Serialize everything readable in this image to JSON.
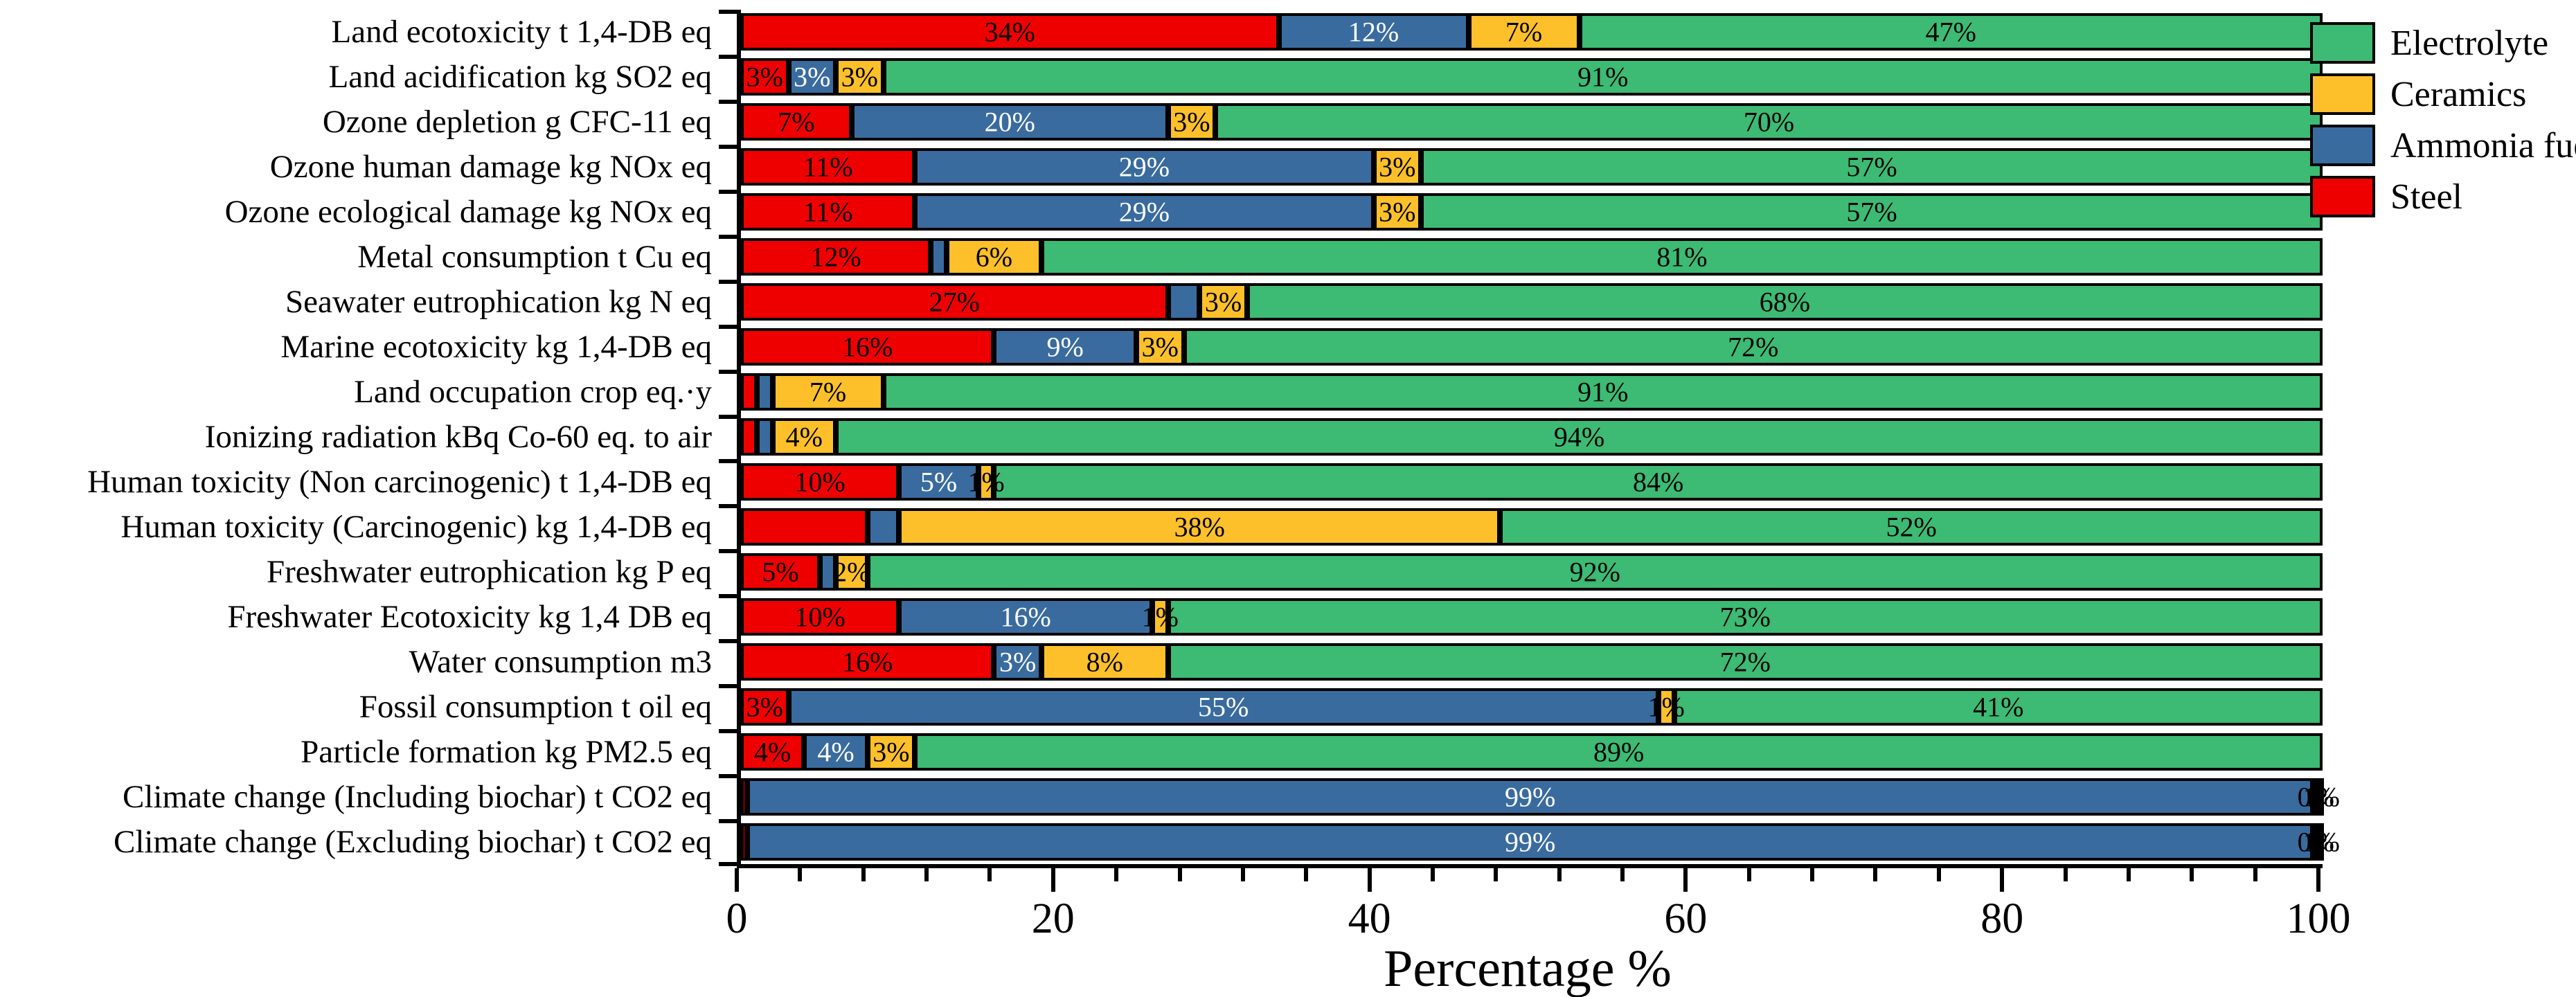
{
  "chart_data": {
    "type": "bar",
    "orientation": "horizontal-stacked",
    "title": "",
    "xlabel": "Percentage %",
    "ylabel": "",
    "xlim": [
      0,
      100
    ],
    "x_major_ticks": [
      0,
      20,
      40,
      60,
      80,
      100
    ],
    "x_minor_tick_step": 4,
    "grid": "off",
    "legend_position": "top-right",
    "background_color": "#ffffff",
    "bar_border_color": "#000000",
    "categories": [
      "Land ecotoxicity t 1,4-DB eq",
      "Land acidification kg SO2 eq",
      "Ozone depletion g CFC-11 eq",
      "Ozone human damage kg NOx eq",
      "Ozone ecological damage kg NOx eq",
      "Metal consumption t Cu eq",
      "Seawater eutrophication kg N eq",
      "Marine ecotoxicity kg 1,4-DB eq",
      "Land occupation crop eq.·y",
      "Ionizing radiation kBq Co-60 eq. to air",
      "Human toxicity (Non carcinogenic) t 1,4-DB eq",
      "Human toxicity (Carcinogenic) kg 1,4-DB eq",
      "Freshwater eutrophication kg P eq",
      "Freshwater Ecotoxicity  kg 1,4 DB eq",
      "Water consumption m3",
      "Fossil consumption t oil eq",
      "Particle formation kg PM2.5 eq",
      "Climate change (Including biochar) t CO2 eq",
      "Climate change (Excluding biochar) t CO2 eq"
    ],
    "series": [
      {
        "name": "Steel",
        "color": "#ee0000",
        "label_color": "#000000",
        "values": [
          34,
          3,
          7,
          11,
          11,
          12,
          27,
          16,
          1,
          1,
          10,
          8,
          5,
          10,
          16,
          3,
          4,
          0.4,
          0.4
        ],
        "labels": [
          "34%",
          "3%",
          "7%",
          "11%",
          "11%",
          "12%",
          "27%",
          "16%",
          "",
          "",
          "10%",
          "",
          "5%",
          "10%",
          "16%",
          "3%",
          "4%",
          "",
          ""
        ]
      },
      {
        "name": "Ammonia fuel",
        "color": "#3a6b9e",
        "label_color": "#ffffff",
        "values": [
          12,
          3,
          20,
          29,
          29,
          1,
          2,
          9,
          1,
          1,
          5,
          2,
          1,
          16,
          3,
          55,
          4,
          99,
          99
        ],
        "labels": [
          "12%",
          "3%",
          "20%",
          "29%",
          "29%",
          "",
          "",
          "9%",
          "",
          "",
          "5%",
          "",
          "",
          "16%",
          "3%",
          "55%",
          "4%",
          "99%",
          "99%"
        ]
      },
      {
        "name": "Ceramics",
        "color": "#fdc02a",
        "label_color": "#000000",
        "values": [
          7,
          3,
          3,
          3,
          3,
          6,
          3,
          3,
          7,
          4,
          1,
          38,
          2,
          1,
          8,
          1,
          3,
          0,
          0
        ],
        "labels": [
          "7%",
          "3%",
          "3%",
          "3%",
          "3%",
          "6%",
          "3%",
          "3%",
          "7%",
          "4%",
          "1%",
          "38%",
          "2%",
          "1%",
          "8%",
          "1%",
          "3%",
          "0%",
          "0%"
        ]
      },
      {
        "name": "Electrolyte",
        "color": "#3dba73",
        "label_color": "#000000",
        "values": [
          47,
          91,
          70,
          57,
          57,
          81,
          68,
          72,
          91,
          94,
          84,
          52,
          92,
          73,
          72,
          41,
          89,
          1,
          1
        ],
        "labels": [
          "47%",
          "91%",
          "70%",
          "57%",
          "57%",
          "81%",
          "68%",
          "72%",
          "91%",
          "94%",
          "84%",
          "52%",
          "92%",
          "73%",
          "72%",
          "41%",
          "89%",
          "1%",
          "1%"
        ]
      }
    ],
    "legend": [
      {
        "label": "Electrolyte",
        "color": "#3dba73"
      },
      {
        "label": "Ceramics",
        "color": "#fdc02a"
      },
      {
        "label": "Ammonia fuel",
        "color": "#3a6b9e"
      },
      {
        "label": "Steel",
        "color": "#ee0000"
      }
    ]
  }
}
